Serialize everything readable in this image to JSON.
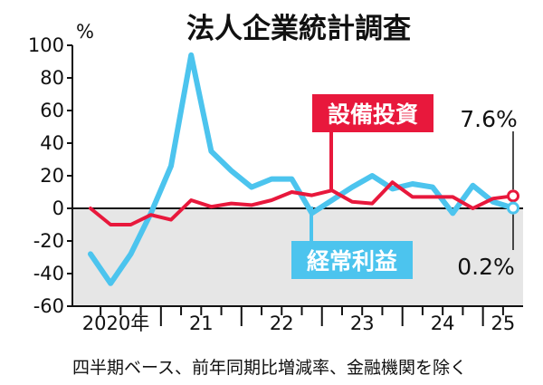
{
  "chart_data": {
    "type": "line",
    "title": "法人企業統計調査",
    "ylabel": "%",
    "ylim": [
      -60,
      100
    ],
    "yticks": [
      "100",
      "80",
      "60",
      "40",
      "20",
      "0",
      "-20",
      "-40",
      "-60"
    ],
    "x_period_labels": [
      "2020年",
      "21",
      "22",
      "23",
      "24",
      "25"
    ],
    "x": [
      "2020Q1",
      "2020Q2",
      "2020Q3",
      "2020Q4",
      "2021Q1",
      "2021Q2",
      "2021Q3",
      "2021Q4",
      "2022Q1",
      "2022Q2",
      "2022Q3",
      "2022Q4",
      "2023Q1",
      "2023Q2",
      "2023Q3",
      "2023Q4",
      "2024Q1",
      "2024Q2",
      "2024Q3",
      "2024Q4",
      "2025Q1",
      "2025Q2"
    ],
    "series": [
      {
        "name": "設備投資",
        "color": "#e8183c",
        "values": [
          0,
          -10,
          -10,
          -4,
          -7,
          5,
          1,
          3,
          2,
          5,
          10,
          8,
          11,
          4,
          3,
          16,
          7,
          7,
          7,
          0,
          6,
          7.6
        ],
        "end_label": "7.6%"
      },
      {
        "name": "経常利益",
        "color": "#4cc4ee",
        "values": [
          -28,
          -46,
          -28,
          -3,
          26,
          94,
          35,
          23,
          13,
          18,
          18,
          -3,
          5,
          13,
          20,
          12,
          15,
          13,
          -3,
          14,
          4,
          0.2
        ],
        "end_label": "0.2%"
      }
    ],
    "grid": false,
    "negative_region_shaded": true,
    "legend": "inline labels"
  },
  "footnote": "四半期ベース、前年同期比増減率、金融機関を除く"
}
